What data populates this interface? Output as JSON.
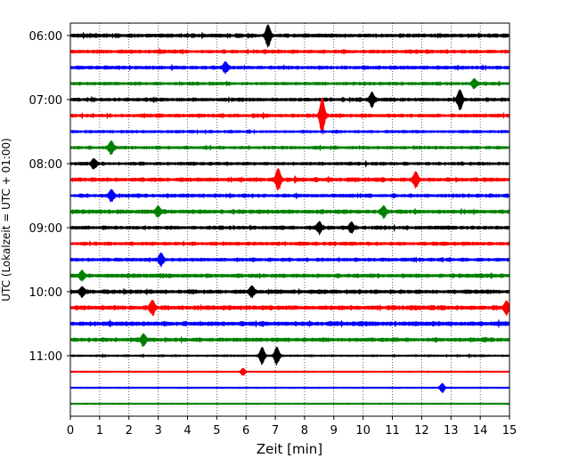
{
  "chart_data": {
    "type": "line",
    "title": "",
    "xlabel": "Zeit  [min]",
    "ylabel": "UTC (Lokalzeit = UTC + 01:00)",
    "xlim": [
      0,
      15
    ],
    "x_ticks": [
      "0",
      "1",
      "2",
      "3",
      "4",
      "5",
      "6",
      "7",
      "8",
      "9",
      "10",
      "11",
      "12",
      "13",
      "14",
      "15"
    ],
    "y_tick_labels": [
      "06:00",
      "07:00",
      "08:00",
      "09:00",
      "10:00",
      "11:00"
    ],
    "y_tick_rows": [
      0,
      4,
      8,
      12,
      16,
      20
    ],
    "grid": "vertical dotted",
    "row_interval_minutes": 15,
    "color_cycle": [
      "#000000",
      "#ff0000",
      "#0000ff",
      "#008000"
    ],
    "series": [
      {
        "start": "06:00",
        "color": "#000000",
        "amplitude": 0.55,
        "events": [
          [
            6.75,
            1.2
          ]
        ]
      },
      {
        "start": "06:15",
        "color": "#ff0000",
        "amplitude": 0.5,
        "events": []
      },
      {
        "start": "06:30",
        "color": "#0000ff",
        "amplitude": 0.5,
        "events": [
          [
            5.3,
            0.6
          ]
        ]
      },
      {
        "start": "06:45",
        "color": "#008000",
        "amplitude": 0.45,
        "events": [
          [
            13.8,
            0.5
          ]
        ]
      },
      {
        "start": "07:00",
        "color": "#000000",
        "amplitude": 0.5,
        "events": [
          [
            10.3,
            0.8
          ],
          [
            13.3,
            1.1
          ]
        ]
      },
      {
        "start": "07:15",
        "color": "#ff0000",
        "amplitude": 0.5,
        "events": [
          [
            8.6,
            2.1
          ]
        ]
      },
      {
        "start": "07:30",
        "color": "#0000ff",
        "amplitude": 0.4,
        "events": []
      },
      {
        "start": "07:45",
        "color": "#008000",
        "amplitude": 0.45,
        "events": [
          [
            1.4,
            0.7
          ]
        ]
      },
      {
        "start": "08:00",
        "color": "#000000",
        "amplitude": 0.45,
        "events": [
          [
            0.8,
            0.5
          ]
        ]
      },
      {
        "start": "08:15",
        "color": "#ff0000",
        "amplitude": 0.55,
        "events": [
          [
            7.1,
            1.2
          ],
          [
            11.8,
            0.8
          ]
        ]
      },
      {
        "start": "08:30",
        "color": "#0000ff",
        "amplitude": 0.5,
        "events": [
          [
            1.4,
            0.6
          ]
        ]
      },
      {
        "start": "08:45",
        "color": "#008000",
        "amplitude": 0.55,
        "events": [
          [
            3.0,
            0.6
          ],
          [
            10.7,
            0.6
          ]
        ]
      },
      {
        "start": "09:00",
        "color": "#000000",
        "amplitude": 0.5,
        "events": [
          [
            8.5,
            0.6
          ],
          [
            9.6,
            0.6
          ]
        ]
      },
      {
        "start": "09:15",
        "color": "#ff0000",
        "amplitude": 0.5,
        "events": []
      },
      {
        "start": "09:30",
        "color": "#0000ff",
        "amplitude": 0.5,
        "events": [
          [
            3.1,
            0.7
          ]
        ]
      },
      {
        "start": "09:45",
        "color": "#008000",
        "amplitude": 0.55,
        "events": [
          [
            0.4,
            0.5
          ]
        ]
      },
      {
        "start": "10:00",
        "color": "#000000",
        "amplitude": 0.55,
        "events": [
          [
            0.4,
            0.5
          ],
          [
            6.2,
            0.6
          ]
        ]
      },
      {
        "start": "10:15",
        "color": "#ff0000",
        "amplitude": 0.6,
        "events": [
          [
            2.8,
            0.8
          ],
          [
            14.9,
            0.7
          ]
        ]
      },
      {
        "start": "10:30",
        "color": "#0000ff",
        "amplitude": 0.6,
        "events": []
      },
      {
        "start": "10:45",
        "color": "#008000",
        "amplitude": 0.55,
        "events": [
          [
            2.5,
            0.6
          ]
        ]
      },
      {
        "start": "11:00",
        "color": "#000000",
        "amplitude": 0.3,
        "events": [
          [
            6.55,
            1.0
          ],
          [
            7.05,
            1.0
          ]
        ]
      },
      {
        "start": "11:15",
        "color": "#ff0000",
        "amplitude": 0.15,
        "events": [
          [
            5.9,
            0.4
          ]
        ]
      },
      {
        "start": "11:30",
        "color": "#0000ff",
        "amplitude": 0.15,
        "events": [
          [
            12.7,
            0.5
          ]
        ]
      },
      {
        "start": "11:45",
        "color": "#008000",
        "amplitude": 0.15,
        "events": []
      }
    ]
  }
}
